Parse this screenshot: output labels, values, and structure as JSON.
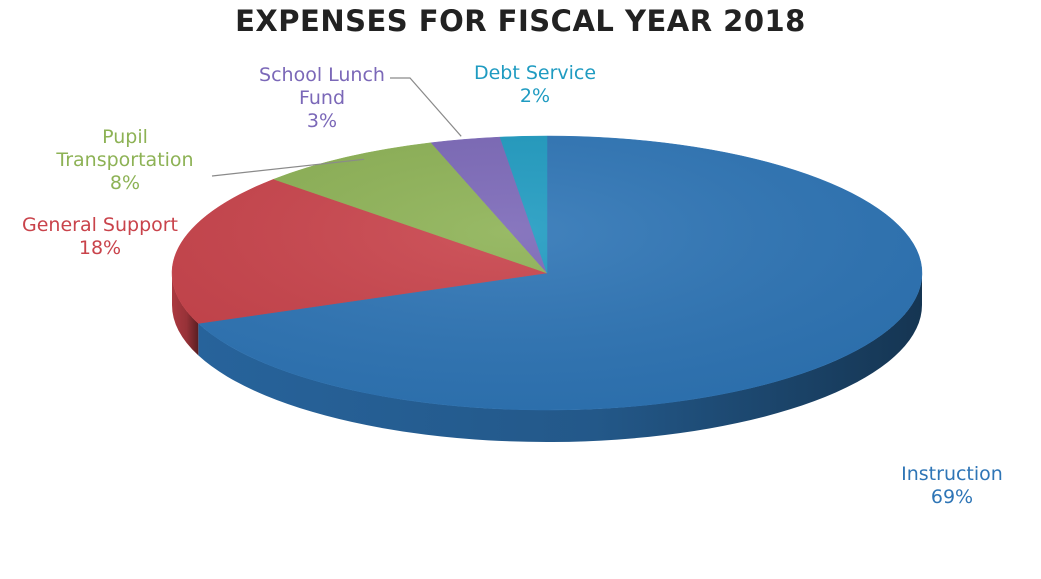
{
  "chart_data": {
    "type": "pie",
    "title": "EXPENSES FOR FISCAL YEAR 2018",
    "slices": [
      {
        "label_lines": [
          "Instruction"
        ],
        "value": 69,
        "pct_label": "69%",
        "color": "#2E75B6",
        "label_color": "#2E75B6"
      },
      {
        "label_lines": [
          "General Support"
        ],
        "value": 18,
        "pct_label": "18%",
        "color": "#C9434B",
        "label_color": "#C9434B"
      },
      {
        "label_lines": [
          "Pupil",
          "Transportation"
        ],
        "value": 8,
        "pct_label": "8%",
        "color": "#8DB255",
        "label_color": "#8DB255"
      },
      {
        "label_lines": [
          "School Lunch",
          "Fund"
        ],
        "value": 3,
        "pct_label": "3%",
        "color": "#7B68B8",
        "label_color": "#7B68B8"
      },
      {
        "label_lines": [
          "Debt Service"
        ],
        "value": 2,
        "pct_label": "2%",
        "color": "#1F9BC1",
        "label_color": "#1F9BC1"
      }
    ]
  }
}
